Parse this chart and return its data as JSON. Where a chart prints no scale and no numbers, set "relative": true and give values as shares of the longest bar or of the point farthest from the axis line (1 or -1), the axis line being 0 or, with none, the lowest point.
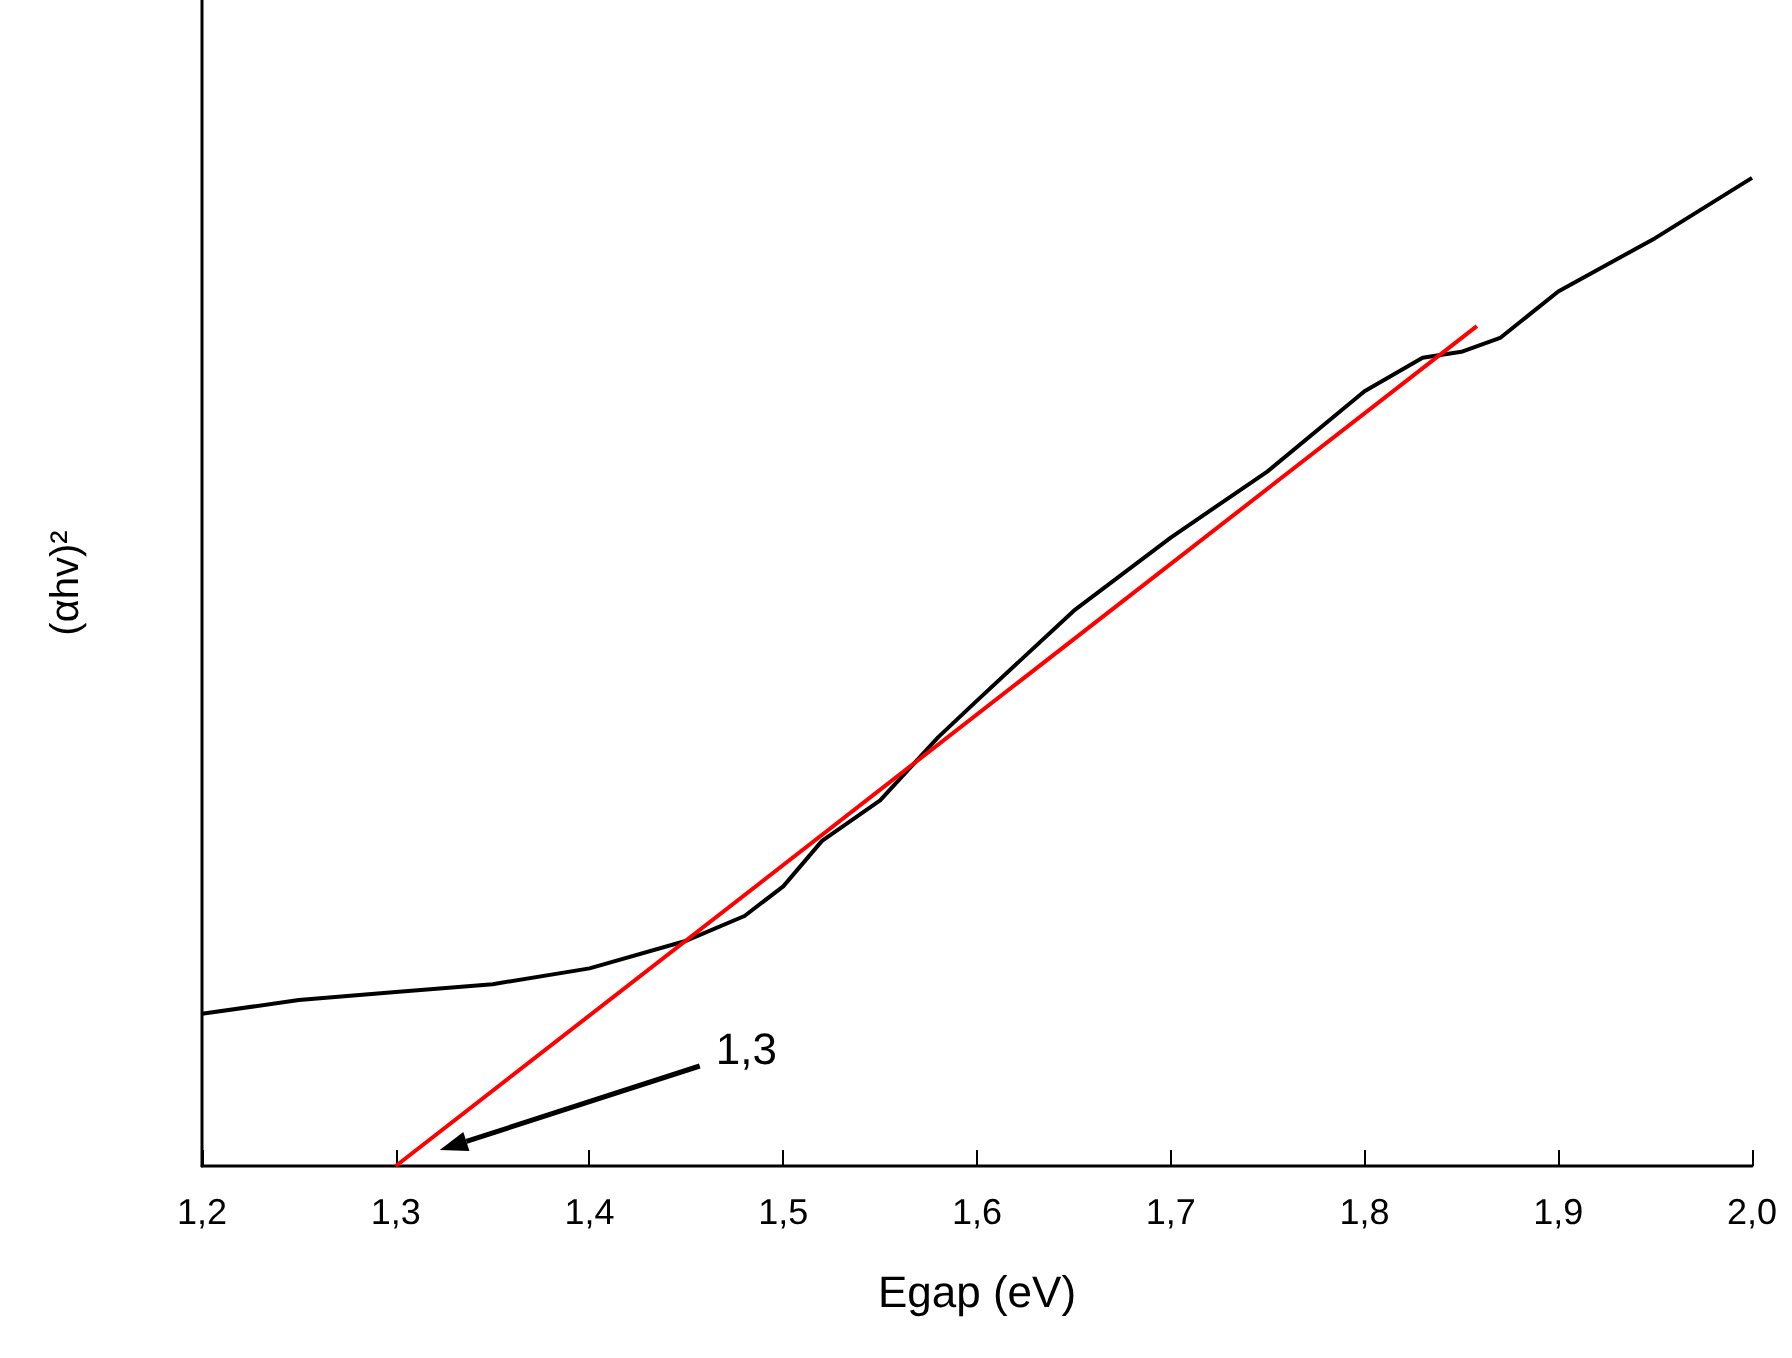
{
  "chart_data": {
    "type": "line",
    "relative": true,
    "xlabel": "Egap (eV)",
    "ylabel": "(αhv)²",
    "xlim": [
      1.2,
      2.0
    ],
    "xticks": [
      {
        "value": 1.2,
        "label": "1,2"
      },
      {
        "value": 1.3,
        "label": "1,3"
      },
      {
        "value": 1.4,
        "label": "1,4"
      },
      {
        "value": 1.5,
        "label": "1,5"
      },
      {
        "value": 1.6,
        "label": "1,6"
      },
      {
        "value": 1.7,
        "label": "1,7"
      },
      {
        "value": 1.8,
        "label": "1,8"
      },
      {
        "value": 1.9,
        "label": "1,9"
      },
      {
        "value": 2.0,
        "label": "2,0"
      }
    ],
    "tick_labels": "x",
    "grid": false,
    "marker": "none",
    "line_style": "solid",
    "series": [
      {
        "color": "#000000",
        "x": [
          1.2,
          1.25,
          1.3,
          1.35,
          1.4,
          1.45,
          1.48,
          1.5,
          1.52,
          1.55,
          1.58,
          1.6,
          1.65,
          1.7,
          1.75,
          1.8,
          1.83,
          1.85,
          1.87,
          1.9,
          1.95,
          2.0
        ],
        "values": [
          0.154,
          0.168,
          0.176,
          0.184,
          0.2,
          0.228,
          0.253,
          0.283,
          0.329,
          0.37,
          0.434,
          0.471,
          0.562,
          0.636,
          0.703,
          0.784,
          0.818,
          0.824,
          0.838,
          0.885,
          0.939,
          1
        ]
      },
      {
        "color": "#ff0000",
        "x": [
          1.3,
          1.858
        ],
        "values": [
          0,
          0.85
        ]
      }
    ],
    "annotations": [
      "1,3"
    ]
  }
}
